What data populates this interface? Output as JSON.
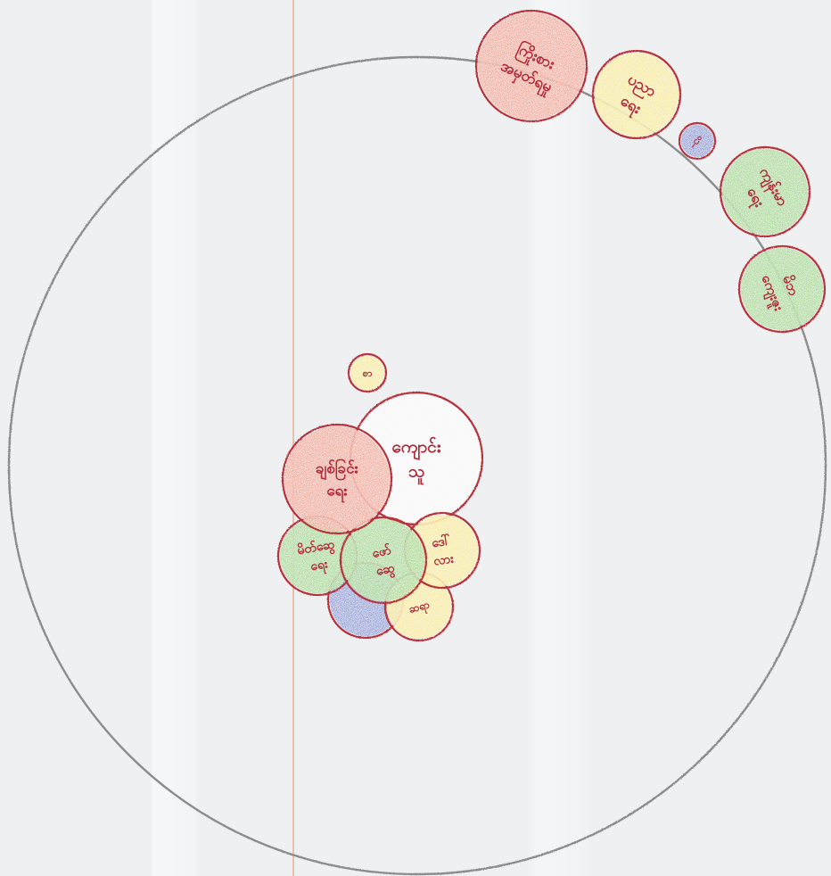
{
  "diagram": {
    "type": "hand-drawn bubble diagram on paper",
    "colors": {
      "paper": "#eef0f2",
      "margin_line": "#e3a889",
      "big_circle": "#8c8c8c",
      "outline": "#b8323a",
      "orange": "#ec7a55",
      "yellow": "#f7e45a",
      "green": "#7ccb4e",
      "blue": "#3f63c8",
      "white": "#f7f7f7",
      "ink": "#b02a3a"
    },
    "bubbles": [
      {
        "id": "orange-top",
        "fill": "orange",
        "lines": [
          "ကြိုးစား",
          "အမှတ်ရမှု"
        ]
      },
      {
        "id": "yellow-top",
        "fill": "yellow",
        "lines": [
          "ပညာ",
          "ရေး"
        ]
      },
      {
        "id": "blue-small",
        "fill": "blue",
        "lines": [
          "ပို"
        ]
      },
      {
        "id": "green-right-1",
        "fill": "green",
        "lines": [
          "ကျန်းမာ",
          "ရေး"
        ]
      },
      {
        "id": "green-right-2",
        "fill": "green",
        "lines": [
          "မိဘ",
          "ကျေးဇူး"
        ]
      },
      {
        "id": "yellow-tiny",
        "fill": "yellow",
        "lines": [
          "စာ"
        ]
      },
      {
        "id": "white-center",
        "fill": "white",
        "lines": [
          "ကျောင်း",
          "သူ"
        ]
      },
      {
        "id": "orange-center",
        "fill": "orange",
        "lines": [
          "ချစ်ခြင်း",
          "ရေး"
        ]
      },
      {
        "id": "green-left",
        "fill": "green",
        "lines": [
          "မိတ်ဆွေ",
          "ရေး"
        ]
      },
      {
        "id": "green-center",
        "fill": "green",
        "lines": [
          "ဖော်",
          "ဆွေ"
        ]
      },
      {
        "id": "yellow-center",
        "fill": "yellow",
        "lines": [
          "ဒေါ်",
          "လား"
        ]
      },
      {
        "id": "blue-bottom",
        "fill": "blue",
        "lines": [
          ""
        ]
      },
      {
        "id": "yellow-bottom",
        "fill": "yellow",
        "lines": [
          "ဆရာ"
        ]
      }
    ]
  }
}
